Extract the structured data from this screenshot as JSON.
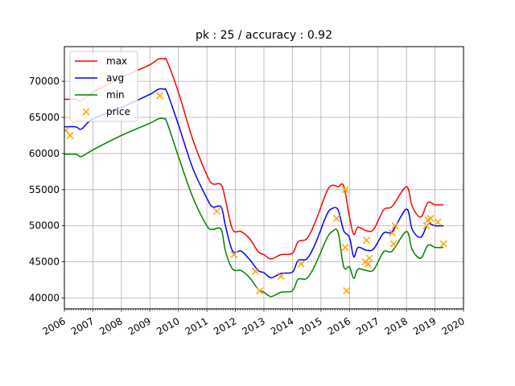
{
  "chart_data": {
    "type": "line",
    "title": "pk : 25 / accuracy : 0.92",
    "xlabel": "",
    "ylabel": "",
    "xlim": [
      2006.0,
      2020.0
    ],
    "ylim": [
      38500,
      74800
    ],
    "x_ticks": [
      2006,
      2007,
      2008,
      2009,
      2010,
      2011,
      2012,
      2013,
      2014,
      2015,
      2016,
      2017,
      2018,
      2019,
      2020
    ],
    "x_tick_labels": [
      "2006",
      "2007",
      "2008",
      "2009",
      "2010",
      "2011",
      "2012",
      "2013",
      "2014",
      "2015",
      "2016",
      "2017",
      "2018",
      "2019",
      "2020"
    ],
    "y_ticks": [
      40000,
      45000,
      50000,
      55000,
      60000,
      65000,
      70000
    ],
    "y_tick_labels": [
      "40000",
      "45000",
      "50000",
      "55000",
      "60000",
      "65000",
      "70000"
    ],
    "grid": true,
    "legend_position": "top-left",
    "series": [
      {
        "name": "max",
        "kind": "line",
        "color": "#ff0000",
        "x": [
          2006.0,
          2006.4,
          2006.6,
          2007.0,
          2008.0,
          2009.0,
          2009.3,
          2009.5,
          2009.6,
          2010.0,
          2010.5,
          2011.0,
          2011.2,
          2011.5,
          2011.65,
          2011.9,
          2012.2,
          2012.5,
          2012.8,
          2013.0,
          2013.25,
          2013.6,
          2014.0,
          2014.2,
          2014.5,
          2014.8,
          2015.2,
          2015.4,
          2015.6,
          2015.8,
          2016.0,
          2016.15,
          2016.3,
          2016.6,
          2016.85,
          2017.2,
          2017.5,
          2018.0,
          2018.2,
          2018.5,
          2018.75,
          2019.0,
          2019.3
        ],
        "y": [
          67500,
          67500,
          67300,
          68500,
          70500,
          72300,
          73100,
          73100,
          72800,
          68500,
          62000,
          57000,
          55800,
          55700,
          53600,
          49500,
          49200,
          48200,
          46400,
          46000,
          45400,
          46000,
          46200,
          47800,
          48200,
          50500,
          54700,
          55600,
          55400,
          55500,
          51200,
          48800,
          49800,
          49300,
          49500,
          52200,
          52700,
          55400,
          52700,
          51200,
          53200,
          52900,
          52900
        ]
      },
      {
        "name": "avg",
        "kind": "line",
        "color": "#0000ff",
        "x": [
          2006.0,
          2006.4,
          2006.6,
          2007.0,
          2008.0,
          2009.0,
          2009.3,
          2009.5,
          2009.6,
          2010.0,
          2010.5,
          2011.0,
          2011.2,
          2011.5,
          2011.65,
          2011.9,
          2012.2,
          2012.5,
          2012.8,
          2013.0,
          2013.25,
          2013.6,
          2014.0,
          2014.2,
          2014.5,
          2014.8,
          2015.2,
          2015.4,
          2015.6,
          2015.8,
          2016.0,
          2016.15,
          2016.3,
          2016.6,
          2016.85,
          2017.2,
          2017.5,
          2018.0,
          2018.2,
          2018.5,
          2018.75,
          2019.0,
          2019.3
        ],
        "y": [
          63700,
          63700,
          63400,
          64800,
          66400,
          68200,
          68900,
          68900,
          68500,
          64000,
          58000,
          53800,
          52600,
          52600,
          50000,
          46500,
          46500,
          45300,
          43800,
          43500,
          42800,
          43400,
          43600,
          45200,
          45400,
          47500,
          51500,
          52400,
          52200,
          49300,
          48400,
          45700,
          47000,
          46600,
          46800,
          49000,
          49200,
          52300,
          49500,
          48400,
          50200,
          50000,
          50000
        ]
      },
      {
        "name": "min",
        "kind": "line",
        "color": "#008000",
        "x": [
          2006.0,
          2006.4,
          2006.6,
          2007.0,
          2008.0,
          2009.0,
          2009.3,
          2009.5,
          2009.6,
          2010.0,
          2010.5,
          2011.0,
          2011.2,
          2011.5,
          2011.65,
          2011.9,
          2012.2,
          2012.5,
          2012.8,
          2013.0,
          2013.25,
          2013.6,
          2014.0,
          2014.2,
          2014.5,
          2014.8,
          2015.2,
          2015.4,
          2015.6,
          2015.8,
          2016.0,
          2016.15,
          2016.3,
          2016.6,
          2016.85,
          2017.2,
          2017.5,
          2018.0,
          2018.2,
          2018.5,
          2018.75,
          2019.0,
          2019.3
        ],
        "y": [
          59900,
          59900,
          59600,
          60500,
          62500,
          64200,
          64800,
          64800,
          64300,
          59600,
          54000,
          50000,
          49500,
          49500,
          46500,
          44000,
          43800,
          42800,
          41200,
          40800,
          40200,
          40800,
          41000,
          42600,
          42700,
          44600,
          48200,
          49200,
          49100,
          44300,
          44300,
          42700,
          44000,
          43800,
          43900,
          46400,
          46500,
          49200,
          46700,
          45500,
          47300,
          47000,
          47000
        ]
      },
      {
        "name": "price",
        "kind": "scatter",
        "color": "#ffa500",
        "x": [
          2006.05,
          2006.2,
          2006.7,
          2009.35,
          2011.35,
          2011.95,
          2012.7,
          2012.85,
          2013.6,
          2014.3,
          2015.55,
          2015.85,
          2015.85,
          2015.9,
          2016.55,
          2016.6,
          2016.65,
          2016.7,
          2017.5,
          2017.55,
          2017.6,
          2018.7,
          2018.75,
          2018.85,
          2019.1,
          2019.3
        ],
        "y": [
          63200,
          62500,
          65500,
          68000,
          52000,
          46000,
          43700,
          41000,
          43000,
          44700,
          51000,
          47000,
          55000,
          41000,
          45000,
          48000,
          44700,
          45500,
          49000,
          47500,
          50000,
          50000,
          50800,
          51000,
          50500,
          47500
        ]
      }
    ]
  }
}
